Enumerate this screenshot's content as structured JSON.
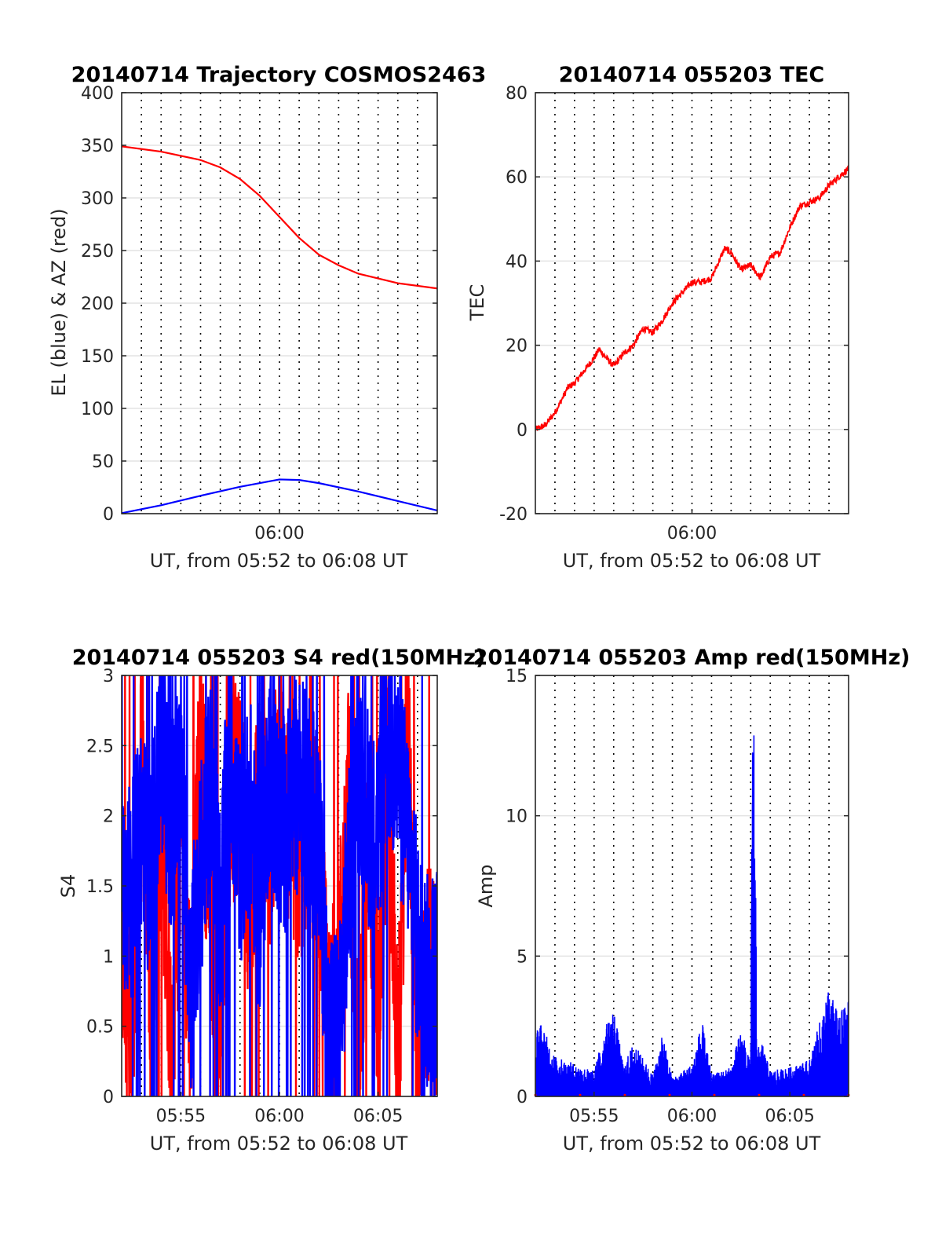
{
  "figure": {
    "background": "#ffffff",
    "series_colors": {
      "azimuth": "#ff0000",
      "elevation": "#0000ff",
      "tec": "#ff0000",
      "s4_red": "#ff0000",
      "s4_blue": "#0000ff",
      "amp_red": "#ff0000",
      "amp_blue": "#0000ff"
    }
  },
  "chart_data": [
    {
      "id": "trajectory",
      "type": "line",
      "title": "20140714 Trajectory COSMOS2463",
      "xlabel": "UT, from 05:52 to 06:08 UT",
      "ylabel": "EL (blue) & AZ (red)",
      "xlim": [
        "05:52",
        "06:08"
      ],
      "ylim": [
        0,
        400
      ],
      "yticks": [
        "0",
        "50",
        "100",
        "150",
        "200",
        "250",
        "300",
        "350",
        "400"
      ],
      "xticks": [
        "06:00"
      ],
      "grid": "dotted vertical lines every 1 min; light horizontal gridlines",
      "series": [
        {
          "color": "#ff0000",
          "x": [
            "05:52",
            "05:54",
            "05:56",
            "05:57",
            "05:58",
            "05:59",
            "06:00",
            "06:01",
            "06:02",
            "06:03",
            "06:04",
            "06:06",
            "06:08"
          ],
          "values": [
            349,
            344,
            336,
            329,
            318,
            302,
            282,
            262,
            246,
            236,
            228,
            219,
            214
          ]
        },
        {
          "color": "#0000ff",
          "x": [
            "05:52",
            "05:54",
            "05:56",
            "05:58",
            "06:00",
            "06:01",
            "06:02",
            "06:04",
            "06:06",
            "06:08"
          ],
          "values": [
            0.5,
            8,
            17,
            25.5,
            32.5,
            32,
            29,
            21,
            12,
            3
          ]
        }
      ]
    },
    {
      "id": "tec",
      "type": "line",
      "title": "20140714 055203 TEC",
      "xlabel": "UT, from 05:52 to 06:08 UT",
      "ylabel": "TEC",
      "xlim": [
        "05:52",
        "06:08"
      ],
      "ylim": [
        -20,
        80
      ],
      "yticks": [
        "-20",
        "0",
        "20",
        "40",
        "60",
        "80"
      ],
      "xticks": [
        "06:00"
      ],
      "grid": "dotted vertical lines every 1 min; light horizontal gridlines",
      "series": [
        {
          "color": "#ff0000",
          "x": [
            "05:52",
            "05:52:30",
            "05:53",
            "05:53:40",
            "05:54",
            "05:55",
            "05:55:15",
            "05:56",
            "05:56:30",
            "05:57",
            "05:57:30",
            "05:58",
            "05:58:30",
            "05:59",
            "06:00",
            "06:00:30",
            "06:01",
            "06:01:40",
            "06:02",
            "06:02:30",
            "06:03",
            "06:03:30",
            "06:04",
            "06:04:30",
            "06:05",
            "06:05:30",
            "06:06",
            "06:06:30",
            "06:07",
            "06:08"
          ],
          "values": [
            0,
            1,
            4,
            10,
            11,
            17,
            19,
            15,
            18,
            20,
            24,
            23,
            26,
            30,
            35,
            35,
            36,
            43,
            42,
            38,
            39,
            36,
            41,
            42,
            48,
            53,
            54,
            55,
            58,
            62
          ]
        }
      ]
    },
    {
      "id": "s4",
      "type": "line",
      "title": "20140714 055203 S4 red(150MHz)",
      "xlabel": "UT, from 05:52 to 06:08 UT",
      "ylabel": "S4",
      "xlim": [
        "05:52",
        "06:08"
      ],
      "ylim": [
        0,
        3
      ],
      "yticks": [
        "0",
        "0.5",
        "1",
        "1.5",
        "2",
        "2.5",
        "3"
      ],
      "xticks": [
        "05:55",
        "06:00",
        "06:05"
      ],
      "grid": "dotted vertical lines every 1 min; light horizontal gridlines",
      "series": [
        {
          "color": "#ff0000",
          "x": [
            "05:52",
            "05:52:30",
            "05:53",
            "05:53:30",
            "05:54",
            "05:54:30",
            "05:55",
            "05:55:30",
            "05:56",
            "05:56:30",
            "05:57",
            "05:57:30",
            "05:58",
            "05:58:30",
            "05:59",
            "05:59:30",
            "06:00",
            "06:00:30",
            "06:01",
            "06:01:30",
            "06:02",
            "06:02:30",
            "06:03",
            "06:03:30",
            "06:04",
            "06:04:30",
            "06:05",
            "06:05:30",
            "06:06",
            "06:06:30",
            "06:07",
            "06:07:30",
            "06:08"
          ],
          "values": [
            1.2,
            0.2,
            2.4,
            0.8,
            2.1,
            0.3,
            1.9,
            0.6,
            2.5,
            1.4,
            0.5,
            2.0,
            2.3,
            1.3,
            2.2,
            1.8,
            2.4,
            1.9,
            1.6,
            2.0,
            1.7,
            0.4,
            0.9,
            2.2,
            0.2,
            1.8,
            0.3,
            2.5,
            0.1,
            2.7,
            0.2,
            0.9,
            0.8
          ]
        },
        {
          "color": "#0000ff",
          "x": [
            "05:52",
            "05:52:30",
            "05:53",
            "05:53:30",
            "05:54",
            "05:54:30",
            "05:55",
            "05:55:30",
            "05:56",
            "05:56:30",
            "05:57",
            "05:57:30",
            "05:58",
            "05:58:30",
            "05:59",
            "05:59:30",
            "06:00",
            "06:00:30",
            "06:01",
            "06:01:30",
            "06:02",
            "06:02:30",
            "06:03",
            "06:03:30",
            "06:04",
            "06:04:30",
            "06:05",
            "06:05:30",
            "06:06",
            "06:06:30",
            "06:07",
            "06:07:30",
            "06:08"
          ],
          "values": [
            1.6,
            1.4,
            2.0,
            1.5,
            2.6,
            1.9,
            2.3,
            0.8,
            1.6,
            2.2,
            1.3,
            2.5,
            1.7,
            2.1,
            1.3,
            2.4,
            1.9,
            2.0,
            2.3,
            2.1,
            1.8,
            0.4,
            0.5,
            1.5,
            2.4,
            2.0,
            1.9,
            2.6,
            2.3,
            1.9,
            1.1,
            0.8,
            0.9
          ]
        }
      ]
    },
    {
      "id": "amp",
      "type": "line",
      "title": "20140714 055203 Amp red(150MHz)",
      "xlabel": "UT, from 05:52 to 06:08 UT",
      "ylabel": "Amp",
      "xlim": [
        "05:52",
        "06:08"
      ],
      "ylim": [
        0,
        15
      ],
      "yticks": [
        "0",
        "5",
        "10",
        "15"
      ],
      "xticks": [
        "05:55",
        "06:00",
        "06:05"
      ],
      "grid": "dotted vertical lines every 1 min; light horizontal gridlines",
      "series": [
        {
          "color": "#0000ff",
          "x": [
            "05:52",
            "05:52:10",
            "05:53",
            "05:54",
            "05:55",
            "05:55:30",
            "05:56",
            "05:56:30",
            "05:57",
            "05:58",
            "05:58:30",
            "05:59",
            "06:00",
            "06:00:30",
            "06:01",
            "06:02",
            "06:02:30",
            "06:03",
            "06:03:05",
            "06:03:10",
            "06:03:15",
            "06:03:20",
            "06:03:30",
            "06:04",
            "06:05",
            "06:06",
            "06:06:30",
            "06:07",
            "06:07:30",
            "06:08"
          ],
          "values": [
            1.3,
            2.2,
            1.1,
            0.9,
            0.7,
            1.8,
            2.5,
            0.8,
            1.5,
            0.6,
            1.7,
            0.5,
            0.9,
            2.1,
            0.6,
            0.8,
            1.9,
            0.9,
            10.8,
            10.5,
            6.8,
            1.2,
            1.6,
            0.7,
            0.8,
            1.0,
            2.0,
            3.0,
            2.2,
            2.8
          ]
        },
        {
          "color": "#ff0000",
          "x": [
            "05:57",
            "06:03:10"
          ],
          "values": [
            0.05,
            0.1
          ]
        }
      ]
    }
  ]
}
